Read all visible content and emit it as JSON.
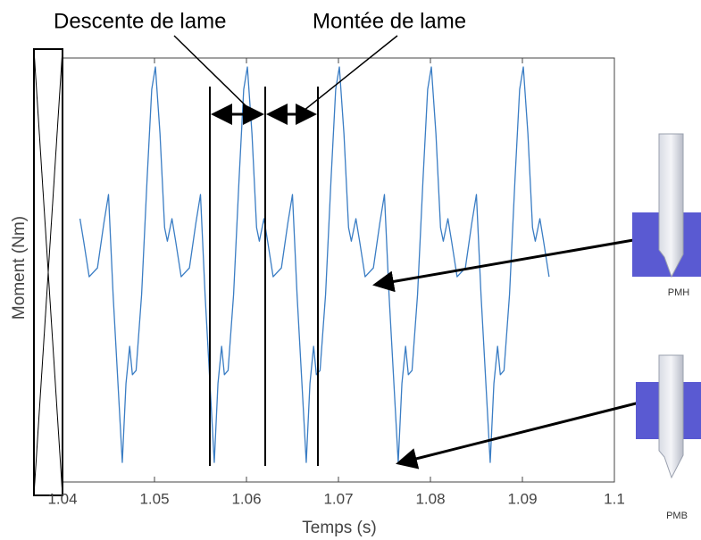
{
  "chart_data": {
    "type": "line",
    "xlabel": "Temps (s)",
    "ylabel": "Moment (Nm)",
    "annotations": [
      "Descente de lame",
      "Montée de lame",
      "PMH",
      "PMB"
    ],
    "xlim": [
      1.04,
      1.1
    ],
    "xticks": [
      1.04,
      1.05,
      1.06,
      1.07,
      1.08,
      1.09,
      1.1
    ],
    "ylim": [
      0,
      10
    ],
    "series": [
      {
        "color": "#3a7dc4",
        "x": [
          1.0419,
          1.0423,
          1.0429,
          1.0438,
          1.0445,
          1.045,
          1.0455,
          1.0465,
          1.0469,
          1.0473,
          1.0476,
          1.048,
          1.0486,
          1.0492,
          1.0497,
          1.0501,
          1.0506,
          1.0511,
          1.0514,
          1.0519,
          1.0523,
          1.0529,
          1.0538,
          1.0545,
          1.055,
          1.0555,
          1.0565,
          1.0569,
          1.0573,
          1.0576,
          1.058,
          1.0586,
          1.0592,
          1.0597,
          1.0601,
          1.0606,
          1.0611,
          1.0614,
          1.0619,
          1.0623,
          1.0629,
          1.0638,
          1.0645,
          1.065,
          1.0655,
          1.0665,
          1.0669,
          1.0673,
          1.0676,
          1.068,
          1.0686,
          1.0692,
          1.0697,
          1.0701,
          1.0706,
          1.0711,
          1.0714,
          1.0719,
          1.0723,
          1.0729,
          1.0738,
          1.0745,
          1.075,
          1.0755,
          1.0765,
          1.0769,
          1.0773,
          1.0776,
          1.078,
          1.0786,
          1.0792,
          1.0797,
          1.0801,
          1.0806,
          1.0811,
          1.0814,
          1.0819,
          1.0823,
          1.0829,
          1.0838,
          1.0845,
          1.085,
          1.0855,
          1.0865,
          1.0869,
          1.0873,
          1.0876,
          1.088,
          1.0886,
          1.0892,
          1.0897,
          1.0901,
          1.0906,
          1.0911,
          1.0914,
          1.0919,
          1.0923,
          1.0929
        ],
        "values": [
          6.21,
          5.68,
          4.84,
          5.05,
          6.11,
          6.78,
          4.42,
          0.46,
          2.32,
          3.2,
          2.53,
          2.63,
          4.42,
          7.16,
          9.26,
          9.79,
          8.21,
          6.0,
          5.68,
          6.21,
          5.68,
          4.84,
          5.05,
          6.11,
          6.78,
          4.42,
          0.46,
          2.32,
          3.2,
          2.53,
          2.63,
          4.42,
          7.16,
          9.26,
          9.79,
          8.21,
          6.0,
          5.68,
          6.21,
          5.68,
          4.84,
          5.05,
          6.11,
          6.78,
          4.42,
          0.46,
          2.32,
          3.2,
          2.53,
          2.63,
          4.42,
          7.16,
          9.26,
          9.79,
          8.21,
          6.0,
          5.68,
          6.21,
          5.68,
          4.84,
          5.05,
          6.11,
          6.78,
          4.42,
          0.46,
          2.32,
          3.2,
          2.53,
          2.63,
          4.42,
          7.16,
          9.26,
          9.79,
          8.21,
          6.0,
          5.68,
          6.21,
          5.68,
          4.84,
          5.05,
          6.11,
          6.78,
          4.42,
          0.46,
          2.32,
          3.2,
          2.53,
          2.63,
          4.42,
          7.16,
          9.26,
          9.79,
          8.21,
          6.0,
          5.68,
          6.21,
          5.68,
          4.84
        ]
      }
    ]
  }
}
